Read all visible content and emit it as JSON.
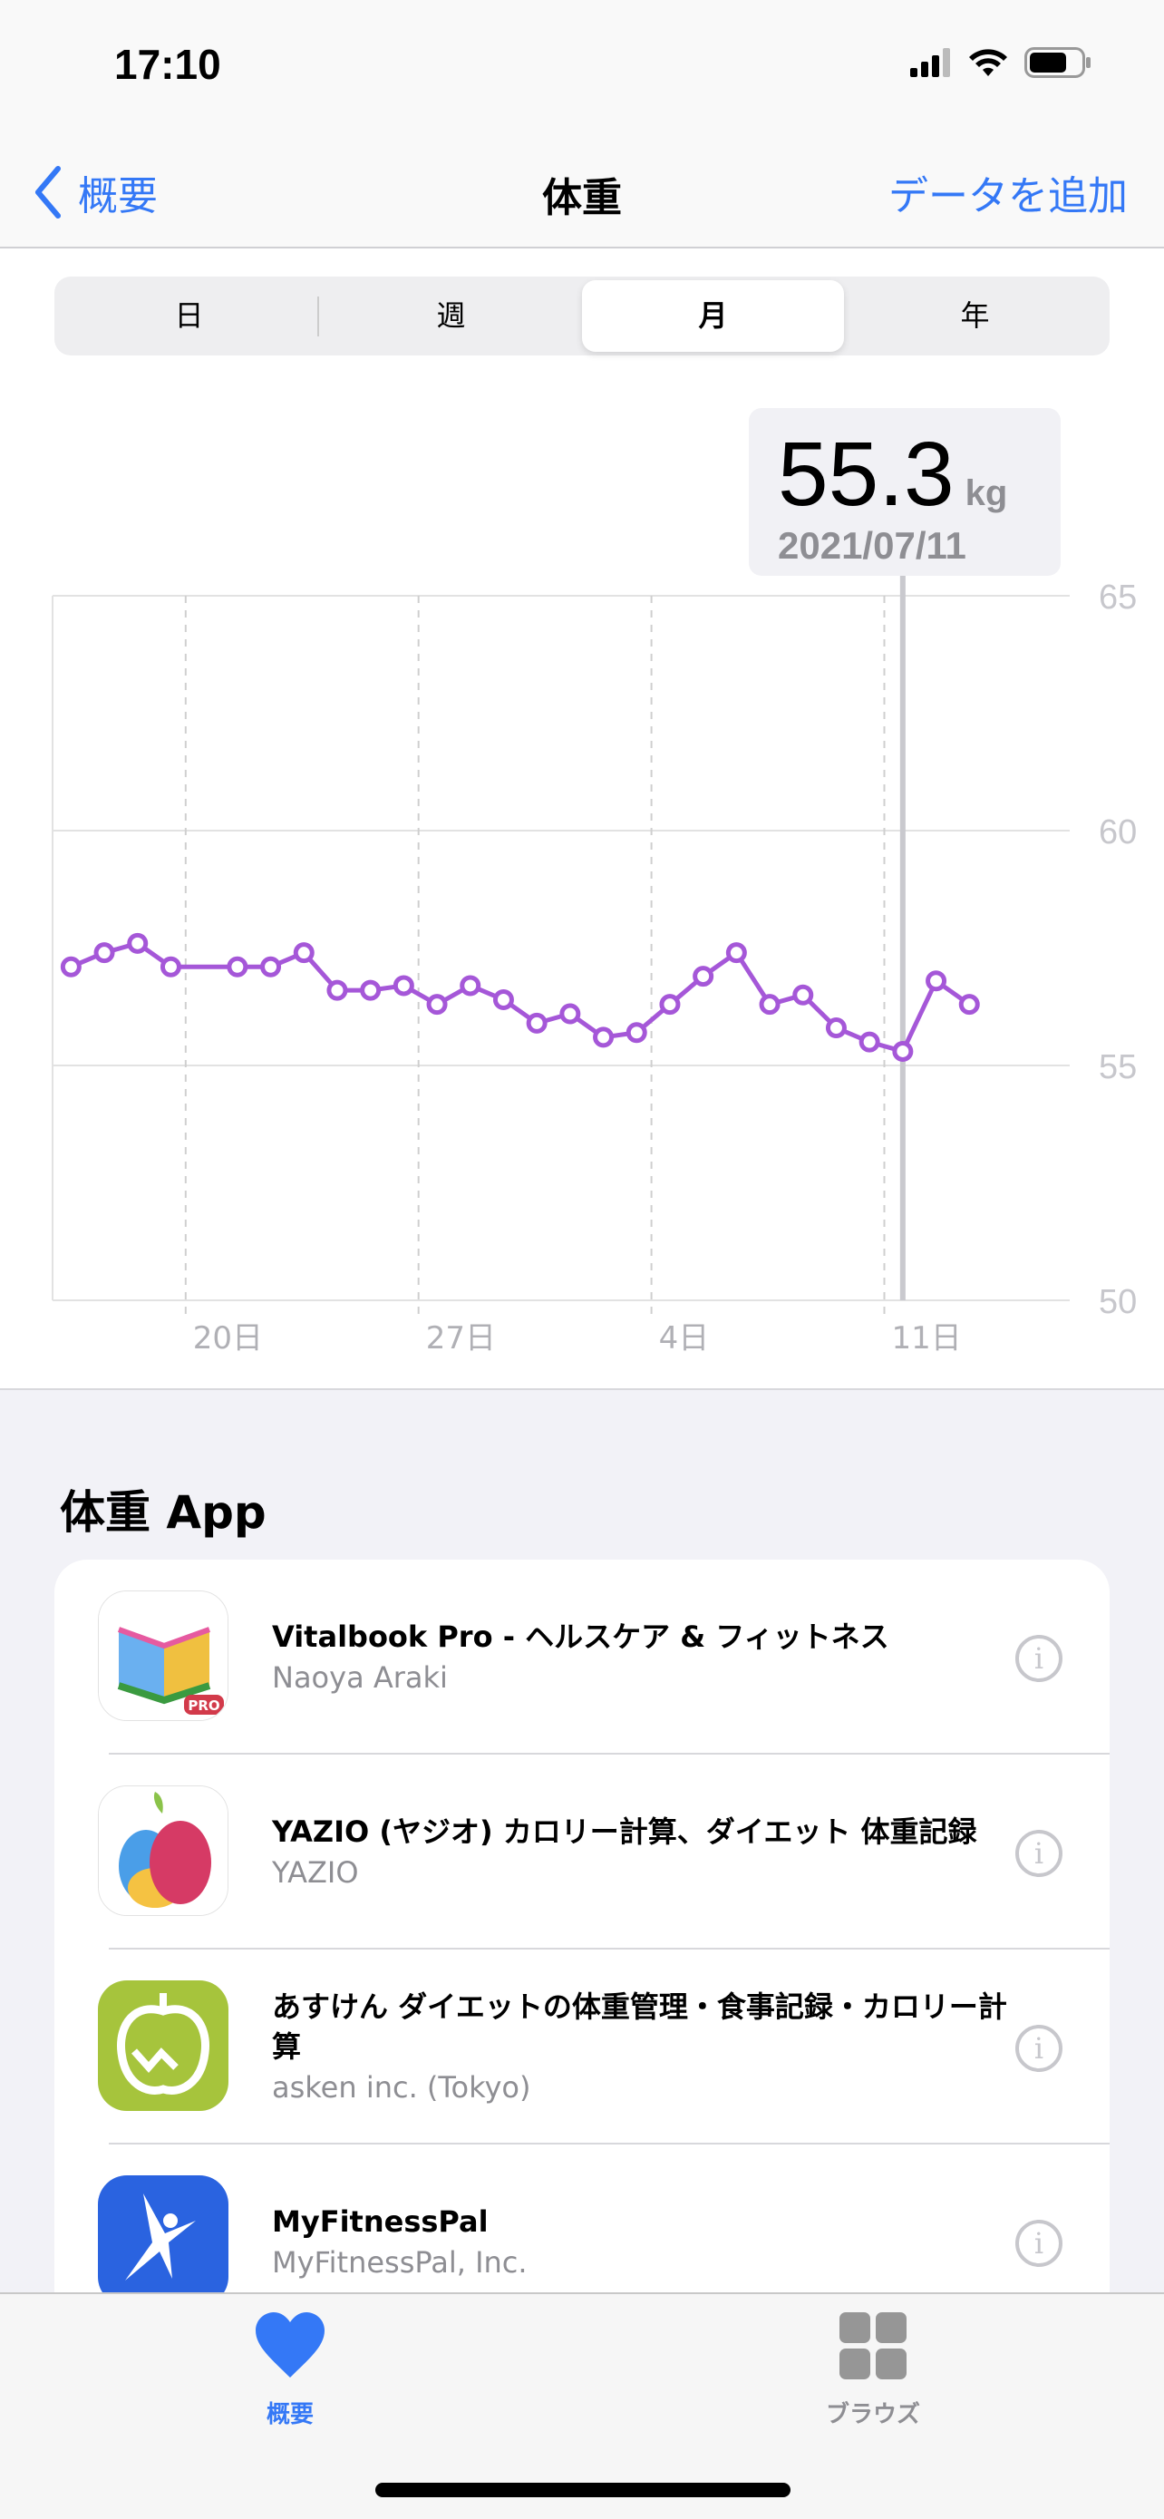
{
  "status": {
    "time": "17:10"
  },
  "nav": {
    "back_label": "概要",
    "title": "体重",
    "add_label": "データを追加"
  },
  "segments": [
    "日",
    "週",
    "月",
    "年"
  ],
  "selected_segment": "月",
  "tooltip": {
    "value": "55.3",
    "unit": "kg",
    "date": "2021/07/11"
  },
  "colors": {
    "accent": "#3478f6",
    "series": "#a557d8"
  },
  "chart_data": {
    "type": "line",
    "x_range": [
      "2021-06-16",
      "2021-07-16"
    ],
    "ylim": [
      50,
      65
    ],
    "y_ticks": [
      65,
      60,
      55,
      50
    ],
    "x_ticks": [
      {
        "date": "2021-06-20",
        "label": "20日"
      },
      {
        "date": "2021-06-27",
        "label": "27日"
      },
      {
        "date": "2021-07-04",
        "label": "4日"
      },
      {
        "date": "2021-07-11",
        "label": "11日"
      }
    ],
    "unit": "kg",
    "selected": "2021-07-11",
    "points": [
      {
        "x": "2021-06-16",
        "y": 57.1
      },
      {
        "x": "2021-06-17",
        "y": 57.4
      },
      {
        "x": "2021-06-18",
        "y": 57.6
      },
      {
        "x": "2021-06-19",
        "y": 57.1
      },
      {
        "x": "2021-06-21",
        "y": 57.1
      },
      {
        "x": "2021-06-22",
        "y": 57.1
      },
      {
        "x": "2021-06-23",
        "y": 57.4
      },
      {
        "x": "2021-06-24",
        "y": 56.6
      },
      {
        "x": "2021-06-25",
        "y": 56.6
      },
      {
        "x": "2021-06-26",
        "y": 56.7
      },
      {
        "x": "2021-06-27",
        "y": 56.3
      },
      {
        "x": "2021-06-28",
        "y": 56.7
      },
      {
        "x": "2021-06-29",
        "y": 56.4
      },
      {
        "x": "2021-06-30",
        "y": 55.9
      },
      {
        "x": "2021-07-01",
        "y": 56.1
      },
      {
        "x": "2021-07-02",
        "y": 55.6
      },
      {
        "x": "2021-07-03",
        "y": 55.7
      },
      {
        "x": "2021-07-04",
        "y": 56.3
      },
      {
        "x": "2021-07-05",
        "y": 56.9
      },
      {
        "x": "2021-07-06",
        "y": 57.4
      },
      {
        "x": "2021-07-07",
        "y": 56.3
      },
      {
        "x": "2021-07-08",
        "y": 56.5
      },
      {
        "x": "2021-07-09",
        "y": 55.8
      },
      {
        "x": "2021-07-10",
        "y": 55.5
      },
      {
        "x": "2021-07-11",
        "y": 55.3
      },
      {
        "x": "2021-07-12",
        "y": 56.8
      },
      {
        "x": "2021-07-13",
        "y": 56.3
      }
    ]
  },
  "apps_section": {
    "title": "体重 App",
    "apps": [
      {
        "name": "Vitalbook Pro - ヘルスケア & フィットネス",
        "developer": "Naoya Araki",
        "icon": "vitalbook-icon"
      },
      {
        "name": "YAZIO (ヤジオ) カロリー計算、ダイエット 体重記録",
        "developer": "YAZIO",
        "icon": "yazio-icon"
      },
      {
        "name": "あすけん ダイエットの体重管理・食事記録・カロリー計算",
        "developer": "asken inc. (Tokyo)",
        "icon": "asken-icon"
      },
      {
        "name": "MyFitnessPal",
        "developer": "MyFitnessPal, Inc.",
        "icon": "myfitnesspal-icon"
      }
    ]
  },
  "tabbar": {
    "items": [
      {
        "label": "概要",
        "icon": "heart-icon"
      },
      {
        "label": "ブラウズ",
        "icon": "grid-icon"
      }
    ]
  }
}
